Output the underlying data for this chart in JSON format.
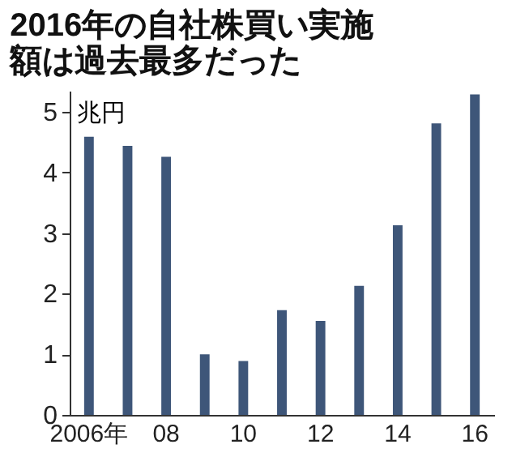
{
  "chart_data": {
    "type": "bar",
    "title": "2016年の自社株買い実施額は過去最多だった",
    "ylabel": "兆円",
    "categories": [
      "2006年",
      null,
      "08",
      null,
      "10",
      null,
      "12",
      null,
      "14",
      null,
      "16"
    ],
    "values": [
      4.59,
      4.44,
      4.26,
      1.0,
      0.89,
      1.73,
      1.55,
      2.13,
      3.13,
      4.81,
      5.29
    ],
    "color": "#3e5679",
    "ylim": [
      0,
      5.35
    ],
    "yticks": [
      0,
      1,
      2,
      3,
      4,
      5
    ],
    "grid": false
  }
}
